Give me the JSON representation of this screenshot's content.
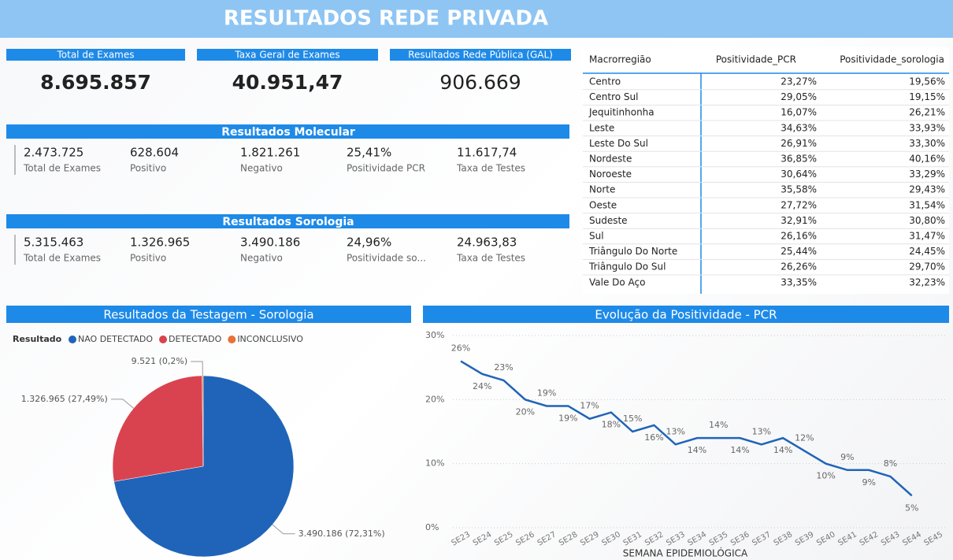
{
  "header": {
    "title": "RESULTADOS REDE PRIVADA"
  },
  "kpis": [
    {
      "label": "Total de Exames",
      "value": "8.695.857"
    },
    {
      "label": "Taxa Geral de Exames",
      "value": "40.951,47"
    },
    {
      "label": "Resultados Rede Pública (GAL)",
      "value": "906.669"
    }
  ],
  "sections": [
    {
      "title": "Resultados Molecular",
      "items": [
        {
          "value": "2.473.725",
          "label": "Total de Exames"
        },
        {
          "value": "628.604",
          "label": "Positivo"
        },
        {
          "value": "1.821.261",
          "label": "Negativo"
        },
        {
          "value": "25,41%",
          "label": "Positividade PCR"
        },
        {
          "value": "11.617,74",
          "label": "Taxa de Testes"
        }
      ]
    },
    {
      "title": "Resultados Sorologia",
      "items": [
        {
          "value": "5.315.463",
          "label": "Total de Exames"
        },
        {
          "value": "1.326.965",
          "label": "Positivo"
        },
        {
          "value": "3.490.186",
          "label": "Negativo"
        },
        {
          "value": "24,96%",
          "label": "Positividade so..."
        },
        {
          "value": "24.963,83",
          "label": "Taxa de Testes"
        }
      ]
    }
  ],
  "table": {
    "columns": [
      "Macrorregião",
      "Positividade_PCR",
      "Positividade_sorologia"
    ],
    "rows": [
      [
        "Centro",
        "23,27%",
        "19,56%"
      ],
      [
        "Centro Sul",
        "29,05%",
        "19,15%"
      ],
      [
        "Jequitinhonha",
        "16,07%",
        "26,21%"
      ],
      [
        "Leste",
        "34,63%",
        "33,93%"
      ],
      [
        "Leste Do Sul",
        "26,91%",
        "33,30%"
      ],
      [
        "Nordeste",
        "36,85%",
        "40,16%"
      ],
      [
        "Noroeste",
        "30,64%",
        "33,29%"
      ],
      [
        "Norte",
        "35,58%",
        "29,43%"
      ],
      [
        "Oeste",
        "27,72%",
        "31,54%"
      ],
      [
        "Sudeste",
        "32,91%",
        "30,80%"
      ],
      [
        "Sul",
        "26,16%",
        "31,47%"
      ],
      [
        "Triângulo Do Norte",
        "25,44%",
        "24,45%"
      ],
      [
        "Triângulo Do Sul",
        "26,26%",
        "29,70%"
      ],
      [
        "Vale Do Aço",
        "33,35%",
        "32,23%"
      ]
    ]
  },
  "chart_data": [
    {
      "type": "pie",
      "title": "Resultados da Testagem - Sorologia",
      "legend_title": "Resultado",
      "legend": "top-left",
      "categories": [
        "NAO DETECTADO",
        "DETECTADO",
        "INCONCLUSIVO"
      ],
      "values": [
        3490186,
        1326965,
        9521
      ],
      "value_labels": [
        "3.490.186 (72,31%)",
        "1.326.965 (27,49%)",
        "9.521 (0,2%)"
      ],
      "colors": [
        "#1f64b8",
        "#d9434f",
        "#e8703a"
      ]
    },
    {
      "type": "line",
      "title": "Evolução da Positividade - PCR",
      "x_label": "SEMANA EPIDEMIOLÓGICA",
      "categories": [
        "SE23",
        "SE24",
        "SE25",
        "SE26",
        "SE27",
        "SE28",
        "SE29",
        "SE30",
        "SE31",
        "SE32",
        "SE33",
        "SE34",
        "SE35",
        "SE36",
        "SE37",
        "SE38",
        "SE39",
        "SE40",
        "SE41",
        "SE42",
        "SE43",
        "SE44",
        "SE45"
      ],
      "values": [
        26,
        24,
        23,
        20,
        19,
        19,
        17,
        18,
        15,
        16,
        13,
        14,
        14,
        14,
        13,
        14,
        12,
        10,
        9,
        9,
        8,
        5,
        null
      ],
      "value_labels": [
        "26%",
        "24%",
        "23%",
        "20%",
        "19%",
        "19%",
        "17%",
        "18%",
        "15%",
        "16%",
        "13%",
        "14%",
        "14%",
        "14%",
        "13%",
        "14%",
        "12%",
        "10%",
        "9%",
        "9%",
        "8%",
        "5%",
        null
      ],
      "color": "#1f64b8",
      "ylim": [
        0,
        30
      ],
      "yticks": [
        {
          "value": 0,
          "label": "0%"
        },
        {
          "value": 10,
          "label": "10%"
        },
        {
          "value": 20,
          "label": "20%"
        },
        {
          "value": 30,
          "label": "30%"
        }
      ],
      "grid": true
    }
  ]
}
